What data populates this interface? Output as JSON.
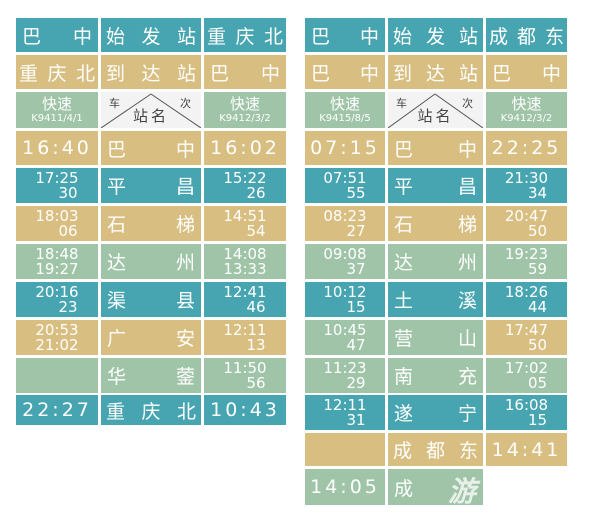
{
  "left_table": {
    "col_a": {
      "r1": "巴",
      "r1b": "中",
      "r2": "重",
      "r2b": "庆",
      "r2c": "北",
      "header_train": "快速",
      "header_code": "K9411/4/1",
      "start_time": "16:40",
      "times": [
        [
          "17:25",
          "30"
        ],
        [
          "18:03",
          "06"
        ],
        [
          "18:48",
          "19:27"
        ],
        [
          "20:16",
          "23"
        ],
        [
          "20:53",
          "21:02"
        ],
        [
          "",
          ""
        ]
      ],
      "end_time": "22:27"
    },
    "col_station": {
      "r1": [
        "始",
        "发",
        "站"
      ],
      "r2": [
        "到",
        "达",
        "站"
      ],
      "header": {
        "car": "车",
        "num": "次",
        "name": "站名"
      },
      "stations": [
        [
          "巴",
          "中"
        ],
        [
          "平",
          "昌"
        ],
        [
          "石",
          "梯"
        ],
        [
          "达",
          "州"
        ],
        [
          "渠",
          "县"
        ],
        [
          "广",
          "安"
        ],
        [
          "华",
          "蓥"
        ]
      ],
      "last": [
        "重",
        "庆",
        "北"
      ]
    },
    "col_b": {
      "r1": [
        "重",
        "庆",
        "北"
      ],
      "r2": "巴",
      "r2b": "中",
      "header_train": "快速",
      "header_code": "K9412/3/2",
      "start_time": "16:02",
      "times": [
        [
          "15:22",
          "26"
        ],
        [
          "14:51",
          "54"
        ],
        [
          "14:08",
          "13:33"
        ],
        [
          "12:41",
          "46"
        ],
        [
          "12:11",
          "13"
        ],
        [
          "11:50",
          "56"
        ]
      ],
      "end_time": "10:43"
    }
  },
  "right_table": {
    "col_a": {
      "r1": "巴",
      "r1b": "中",
      "r2": "巴",
      "r2b": "中",
      "header_train": "快速",
      "header_code": "K9415/8/5",
      "start_time": "07:15",
      "times": [
        [
          "07:51",
          "55"
        ],
        [
          "08:23",
          "27"
        ],
        [
          "09:08",
          "37"
        ],
        [
          "10:12",
          "15"
        ],
        [
          "10:45",
          "47"
        ],
        [
          "11:23",
          "29"
        ],
        [
          "12:11",
          "31"
        ]
      ],
      "end_time": "14:05"
    },
    "col_station": {
      "r1": [
        "始",
        "发",
        "站"
      ],
      "r2": [
        "到",
        "达",
        "站"
      ],
      "header": {
        "car": "车",
        "num": "次",
        "name": "站名"
      },
      "stations": [
        [
          "巴",
          "中"
        ],
        [
          "平",
          "昌"
        ],
        [
          "石",
          "梯"
        ],
        [
          "达",
          "州"
        ],
        [
          "土",
          "溪"
        ],
        [
          "营",
          "山"
        ],
        [
          "南",
          "充"
        ],
        [
          "遂",
          "宁"
        ]
      ],
      "last": [
        "成",
        "都",
        "东"
      ],
      "final": "成"
    },
    "col_b": {
      "r1": [
        "成",
        "都",
        "东"
      ],
      "r2": "巴",
      "r2b": "中",
      "header_train": "快速",
      "header_code": "K9412/3/2",
      "start_time": "22:25",
      "times": [
        [
          "21:30",
          "34"
        ],
        [
          "20:47",
          "50"
        ],
        [
          "19:23",
          "59"
        ],
        [
          "18:26",
          "44"
        ],
        [
          "17:47",
          "50"
        ],
        [
          "17:02",
          "05"
        ],
        [
          "16:08",
          "15"
        ]
      ],
      "end_time": "14:41"
    }
  },
  "watermark": "游",
  "colors": {
    "teal": "#47a4b1",
    "tan": "#d8be80",
    "sage": "#9fc4a8"
  }
}
